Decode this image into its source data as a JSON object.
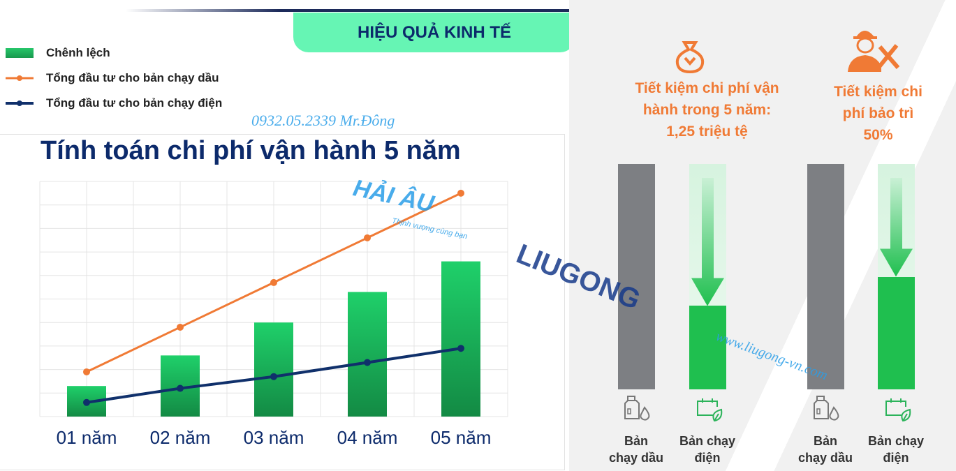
{
  "header": {
    "title": "HIỆU QUẢ KINH TẾ"
  },
  "chart_data": {
    "type": "bar",
    "title": "Tính toán chi phí vận hành 5 năm",
    "categories": [
      "01 năm",
      "02 năm",
      "03 năm",
      "04 năm",
      "05 năm"
    ],
    "series": [
      {
        "name": "Chênh lệch",
        "kind": "bar",
        "color": "#1fbf5f",
        "values": [
          1.3,
          2.6,
          4.0,
          5.3,
          6.6
        ]
      },
      {
        "name": "Tổng đầu tư cho bản chạy dầu",
        "kind": "line",
        "color": "#f07a35",
        "values": [
          1.9,
          3.8,
          5.7,
          7.6,
          9.5
        ]
      },
      {
        "name": "Tổng đầu tư cho bản chạy điện",
        "kind": "line",
        "color": "#10306b",
        "values": [
          0.6,
          1.2,
          1.7,
          2.3,
          2.9
        ]
      }
    ],
    "ylim": [
      0,
      10
    ],
    "grid": true,
    "legend": "top-left"
  },
  "right": {
    "op_saving": "Tiết kiệm chi phí vận hành trong 5 năm: 1,25 triệu tệ",
    "op_saving_lines": [
      "Tiết kiệm chi phí vận",
      "hành trong 5 năm:",
      "1,25 triệu tệ"
    ],
    "maint_saving_lines": [
      "Tiết kiệm chi",
      "phí bảo trì",
      "50%"
    ],
    "groups": [
      {
        "diesel_label": [
          "Bản",
          "chạy dầu"
        ],
        "electric_label": [
          "Bản chạy",
          "điện"
        ],
        "electric_fraction": 0.37
      },
      {
        "diesel_label": [
          "Bản",
          "chạy dầu"
        ],
        "electric_label": [
          "Bản chạy",
          "điện"
        ],
        "electric_fraction": 0.5
      }
    ],
    "colors": {
      "diesel": "#7d7f83",
      "electric": "#1fbf4f",
      "accent": "#f07a35"
    }
  },
  "watermarks": {
    "phone": "0932.05.2339 Mr.Đông",
    "brand": "HẢI ÂU",
    "slogan": "Thịnh vượng cùng bạn",
    "logo": "LIUGONG",
    "website": "www.liugong-vn.com"
  }
}
